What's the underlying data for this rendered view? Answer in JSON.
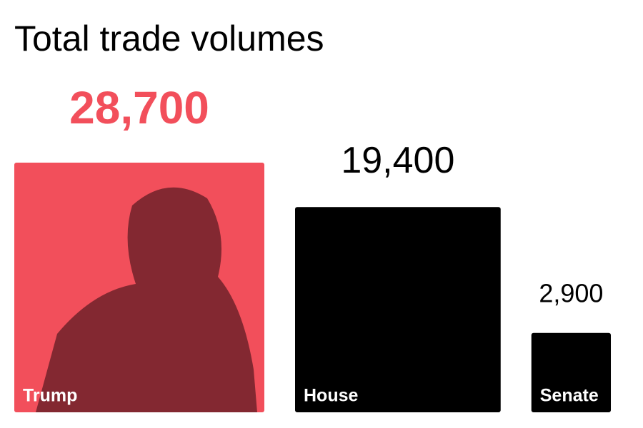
{
  "chart_data": {
    "type": "square",
    "title": "Total trade volumes",
    "categories": [
      "Trump",
      "House",
      "Senate"
    ],
    "values": [
      28700,
      19400,
      2900
    ],
    "value_labels": [
      "28,700",
      "19,400",
      "2,900"
    ],
    "colors": [
      "#f24f5b",
      "#000000",
      "#000000"
    ]
  }
}
